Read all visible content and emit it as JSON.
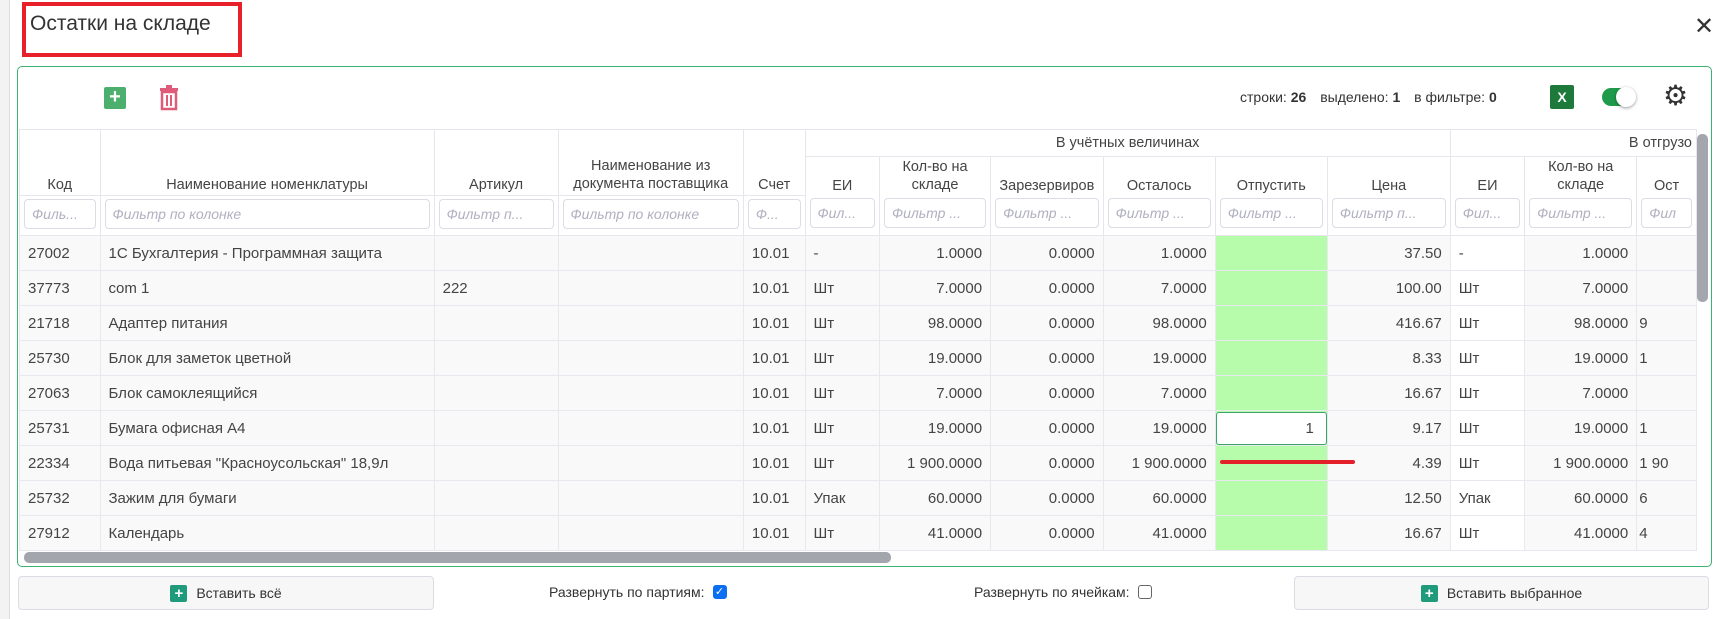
{
  "dialog": {
    "title": "Остатки на складе",
    "close_icon": "close-icon"
  },
  "toolbar": {
    "add_icon": "plus-icon",
    "delete_icon": "trash-icon",
    "rows_label": "строки:",
    "rows_value": "26",
    "selected_label": "выделено:",
    "selected_value": "1",
    "filter_label": "в фильтре:",
    "filter_value": "0",
    "excel_label": "X",
    "toggle_on": true
  },
  "table": {
    "groups": {
      "accounting": "В учётных величинах",
      "shipping": "В отгрузо"
    },
    "columns": [
      {
        "label": "Код",
        "filter": "Филь..."
      },
      {
        "label": "Наименование номенклатуры",
        "filter": "Фильтр по колонке"
      },
      {
        "label": "Артикул",
        "filter": "Фильтр п..."
      },
      {
        "label": "Наименование из документа поставщика",
        "filter": "Фильтр по колонке"
      },
      {
        "label": "Счет",
        "filter": "Ф..."
      },
      {
        "label": "ЕИ",
        "filter": "Фил..."
      },
      {
        "label": "Кол-во на складе",
        "filter": "Фильтр ..."
      },
      {
        "label": "Зарезервиров",
        "filter": "Фильтр ..."
      },
      {
        "label": "Осталось",
        "filter": "Фильтр ..."
      },
      {
        "label": "Отпустить",
        "filter": "Фильтр ..."
      },
      {
        "label": "Цена",
        "filter": "Фильтр п..."
      },
      {
        "label": "ЕИ",
        "filter": "Фил..."
      },
      {
        "label": "Кол-во на складе",
        "filter": "Фильтр ..."
      },
      {
        "label": "Ост",
        "filter": "Фил"
      }
    ],
    "rows": [
      [
        "27002",
        "1С Бухгалтерия - Программная защита",
        "",
        "",
        "10.01",
        "-",
        "1.0000",
        "0.0000",
        "1.0000",
        "",
        "37.50",
        "-",
        "1.0000",
        ""
      ],
      [
        "37773",
        "com 1",
        "222",
        "",
        "10.01",
        "Шт",
        "7.0000",
        "0.0000",
        "7.0000",
        "",
        "100.00",
        "Шт",
        "7.0000",
        ""
      ],
      [
        "21718",
        "Адаптер питания",
        "",
        "",
        "10.01",
        "Шт",
        "98.0000",
        "0.0000",
        "98.0000",
        "",
        "416.67",
        "Шт",
        "98.0000",
        "9"
      ],
      [
        "25730",
        "Блок для заметок цветной",
        "",
        "",
        "10.01",
        "Шт",
        "19.0000",
        "0.0000",
        "19.0000",
        "",
        "8.33",
        "Шт",
        "19.0000",
        "1"
      ],
      [
        "27063",
        "Блок самоклеящийся",
        "",
        "",
        "10.01",
        "Шт",
        "7.0000",
        "0.0000",
        "7.0000",
        "",
        "16.67",
        "Шт",
        "7.0000",
        ""
      ],
      [
        "25731",
        "Бумага офисная А4",
        "",
        "",
        "10.01",
        "Шт",
        "19.0000",
        "0.0000",
        "19.0000",
        "1",
        "9.17",
        "Шт",
        "19.0000",
        "1"
      ],
      [
        "22334",
        "Вода питьевая \"Красноусольская\" 18,9л",
        "",
        "",
        "10.01",
        "Шт",
        "1 900.0000",
        "0.0000",
        "1 900.0000",
        "",
        "4.39",
        "Шт",
        "1 900.0000",
        "1 90"
      ],
      [
        "25732",
        "Зажим для бумаги",
        "",
        "",
        "10.01",
        "Упак",
        "60.0000",
        "0.0000",
        "60.0000",
        "",
        "12.50",
        "Упак",
        "60.0000",
        "6"
      ],
      [
        "27912",
        "Календарь",
        "",
        "",
        "10.01",
        "Шт",
        "41.0000",
        "0.0000",
        "41.0000",
        "",
        "16.67",
        "Шт",
        "41.0000",
        "4"
      ]
    ],
    "editing_row": 5,
    "release_column_color": "#b7fcaa"
  },
  "footer": {
    "insert_all": "Вставить всё",
    "expand_batches_label": "Развернуть по партиям:",
    "expand_batches_checked": true,
    "expand_cells_label": "Развернуть по ячейкам:",
    "expand_cells_checked": false,
    "insert_selected": "Вставить выбранное"
  }
}
